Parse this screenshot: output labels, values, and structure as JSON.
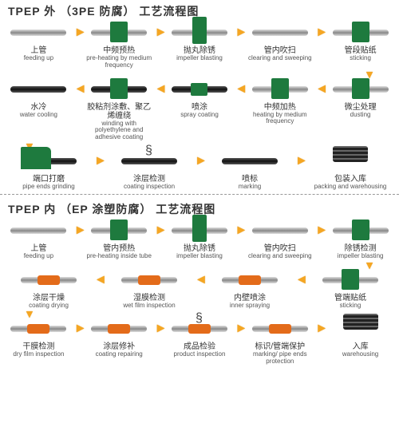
{
  "colors": {
    "bg": "#ffffff",
    "arrow": "#f5a623",
    "green": "#1e7a3e",
    "orange": "#e36b1a",
    "text": "#333333",
    "subtext": "#555555",
    "pipe_light_top": "#dddddd",
    "pipe_light_mid": "#888888",
    "pipe_dark": "#111111"
  },
  "fonts": {
    "title_size": 14,
    "zh_size": 10,
    "en_size": 8
  },
  "section1": {
    "title": "TPEP 外 （3PE 防腐） 工艺流程图",
    "rows": [
      {
        "dir": "right",
        "steps": [
          {
            "zh": "上管",
            "en": "feeding up",
            "style": "light"
          },
          {
            "zh": "中频预热",
            "en": "pre-heating by medium frequency",
            "style": "light",
            "overlay": "box-green"
          },
          {
            "zh": "抛丸除锈",
            "en": "impeller blasting",
            "style": "light",
            "overlay": "box-green tall"
          },
          {
            "zh": "管内吹扫",
            "en": "clearing and sweeping",
            "style": "light"
          },
          {
            "zh": "管段贴纸",
            "en": "sticking",
            "style": "light",
            "overlay": "box-green"
          }
        ]
      },
      {
        "dir": "left",
        "steps": [
          {
            "zh": "水冷",
            "en": "water cooling",
            "style": "dark"
          },
          {
            "zh": "胶粘剂涂敷、聚乙烯缠绕",
            "en": "winding with polyethylene and adhesive coating",
            "style": "dark",
            "overlay": "box-green"
          },
          {
            "zh": "喷涂",
            "en": "spray coating",
            "style": "dark green-mid"
          },
          {
            "zh": "中频加热",
            "en": "heating by medium frequency",
            "style": "light",
            "overlay": "box-green"
          },
          {
            "zh": "微尘处理",
            "en": "dusting",
            "style": "light",
            "overlay": "box-green"
          }
        ]
      },
      {
        "dir": "right",
        "steps": [
          {
            "zh": "端口打磨",
            "en": "pipe ends grinding",
            "style": "dark",
            "overlay": "machine-green"
          },
          {
            "zh": "涂层检测",
            "en": "coating inspection",
            "style": "dark",
            "overlay": "coil"
          },
          {
            "zh": "喷标",
            "en": "marking",
            "style": "dark"
          },
          {
            "zh": "包装入库",
            "en": "packing and warehousing",
            "style": "bundle",
            "overlay": "bundle"
          }
        ]
      }
    ]
  },
  "section2": {
    "title": "TPEP 内 （EP 涂塑防腐） 工艺流程图",
    "rows": [
      {
        "dir": "right",
        "steps": [
          {
            "zh": "上管",
            "en": "feeding up",
            "style": "light"
          },
          {
            "zh": "管内预热",
            "en": "pre-heating inside tube",
            "style": "light",
            "overlay": "box-green"
          },
          {
            "zh": "抛丸除锈",
            "en": "impeller blasting",
            "style": "light",
            "overlay": "box-green tall"
          },
          {
            "zh": "管内吹扫",
            "en": "clearing and sweeping",
            "style": "light"
          },
          {
            "zh": "除锈检测",
            "en": "impeller blasting",
            "style": "light",
            "overlay": "box-green"
          }
        ]
      },
      {
        "dir": "left",
        "steps": [
          {
            "zh": "涂层干燥",
            "en": "coating drying",
            "style": "light orange-mid"
          },
          {
            "zh": "湿膜检测",
            "en": "wet film inspection",
            "style": "light orange-mid"
          },
          {
            "zh": "内壁喷涂",
            "en": "inner spraying",
            "style": "light orange-mid"
          },
          {
            "zh": "管端贴纸",
            "en": "sticking",
            "style": "light",
            "overlay": "box-green"
          }
        ]
      },
      {
        "dir": "right",
        "steps": [
          {
            "zh": "干膜检测",
            "en": "dry film inspection",
            "style": "light orange-mid"
          },
          {
            "zh": "涂层修补",
            "en": "coating repairing",
            "style": "light orange-mid"
          },
          {
            "zh": "成品检验",
            "en": "product inspection",
            "style": "light orange-mid",
            "overlay": "coil"
          },
          {
            "zh": "标识/管端保护",
            "en": "marking/ pipe ends protection",
            "style": "light orange-mid"
          },
          {
            "zh": "入库",
            "en": "warehousing",
            "style": "bundle",
            "overlay": "bundle"
          }
        ]
      }
    ]
  }
}
